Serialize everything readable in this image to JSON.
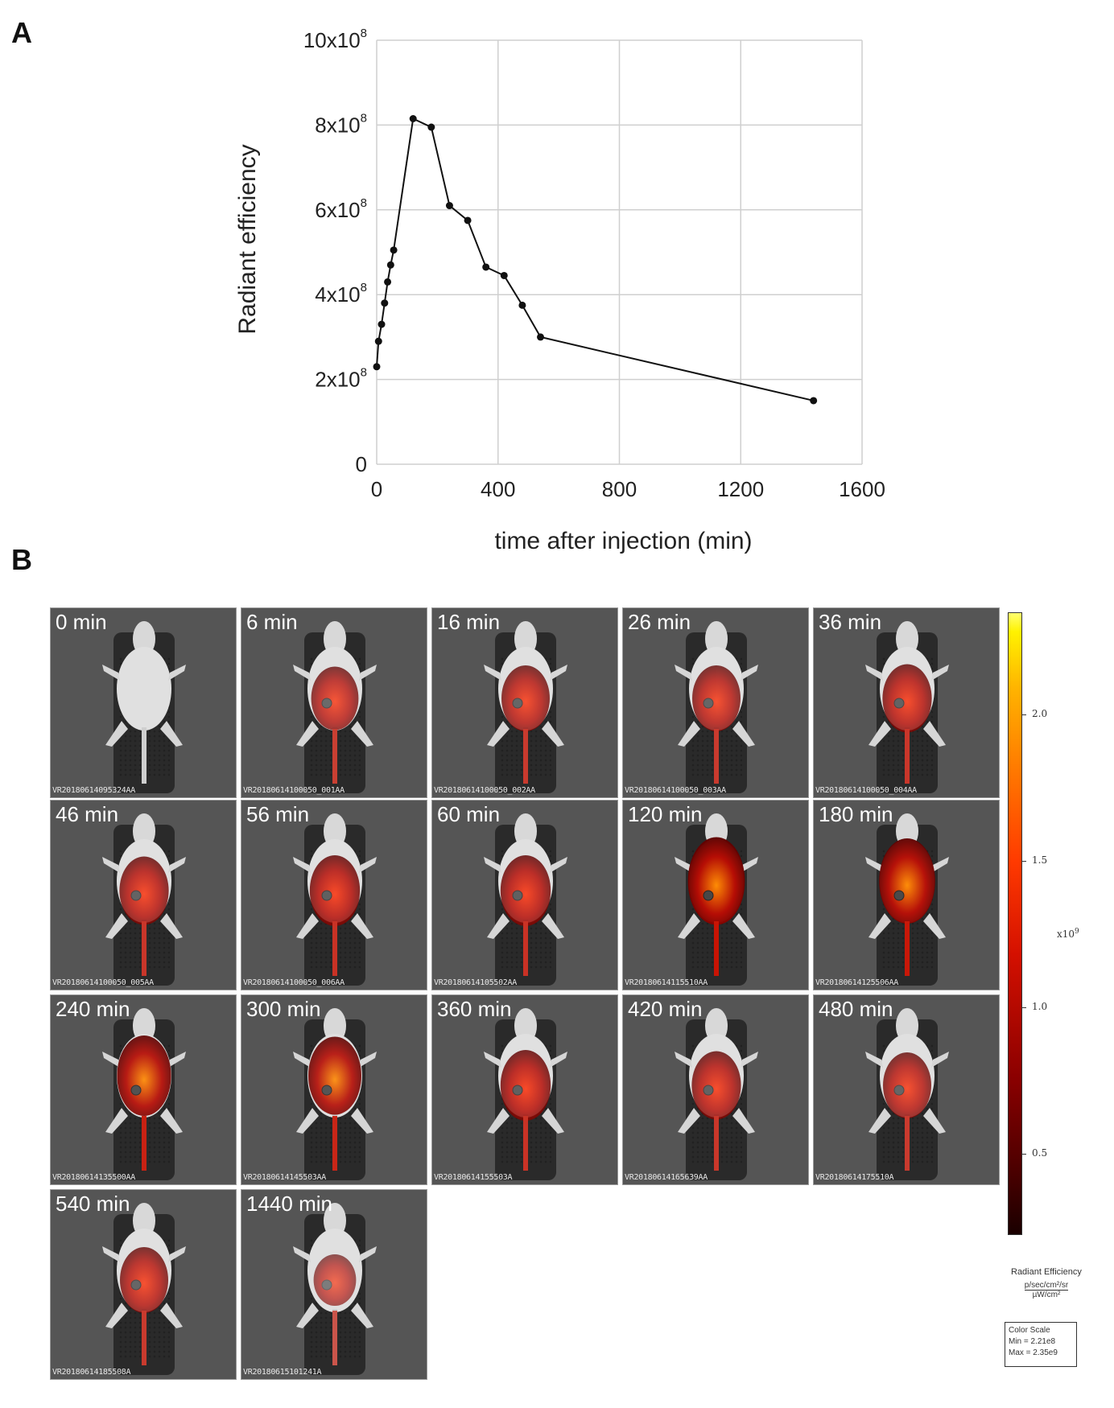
{
  "panel_labels": [
    "A",
    "B"
  ],
  "chart_data": {
    "type": "line",
    "xlabel": "time after injection (min)",
    "ylabel": "Radiant efficiency",
    "xlim": [
      0,
      1600
    ],
    "ylim": [
      0,
      1000000000
    ],
    "xticks": [
      "0",
      "400",
      "800",
      "1200",
      "1600"
    ],
    "yticks": [
      "0",
      "2x10",
      "4x10",
      "6x10",
      "8x10",
      "10x10"
    ],
    "ytick_exponent": "8",
    "grid": true,
    "series": [
      {
        "x": [
          0,
          6,
          16,
          26,
          36,
          46,
          56,
          120,
          180,
          240,
          300,
          360,
          420,
          480,
          540,
          1440
        ],
        "y": [
          230000000,
          290000000,
          330000000,
          380000000,
          430000000,
          470000000,
          505000000,
          815000000,
          795000000,
          610000000,
          575000000,
          465000000,
          445000000,
          375000000,
          300000000,
          150000000
        ]
      }
    ]
  },
  "image_grid": {
    "tiles": [
      {
        "time": "0 min",
        "id": "VR20180614095324AA"
      },
      {
        "time": "6 min",
        "id": "VR20180614100050_001AA"
      },
      {
        "time": "16 min",
        "id": "VR20180614100050_002AA"
      },
      {
        "time": "26 min",
        "id": "VR20180614100050_003AA"
      },
      {
        "time": "36 min",
        "id": "VR20180614100050_004AA"
      },
      {
        "time": "46 min",
        "id": "VR20180614100050_005AA"
      },
      {
        "time": "56 min",
        "id": "VR20180614100050_006AA"
      },
      {
        "time": "60 min",
        "id": "VR20180614105502AA"
      },
      {
        "time": "120 min",
        "id": "VR20180614115510AA"
      },
      {
        "time": "180 min",
        "id": "VR20180614125506AA"
      },
      {
        "time": "240 min",
        "id": "VR20180614135500AA"
      },
      {
        "time": "300 min",
        "id": "VR20180614145503AA"
      },
      {
        "time": "360 min",
        "id": "VR20180614155503A"
      },
      {
        "time": "420 min",
        "id": "VR20180614165639AA"
      },
      {
        "time": "480 min",
        "id": "VR20180614175510A"
      },
      {
        "time": "540 min",
        "id": "VR20180614185508A"
      },
      {
        "time": "1440 min",
        "id": "VR20180615101241A"
      }
    ],
    "heat_levels": [
      0,
      0.45,
      0.5,
      0.5,
      0.55,
      0.55,
      0.6,
      0.6,
      0.95,
      0.9,
      0.8,
      0.75,
      0.6,
      0.55,
      0.5,
      0.5,
      0.2
    ]
  },
  "colorbar": {
    "ticks": [
      "0.5",
      "1.0",
      "1.5",
      "2.0"
    ],
    "tick_values": [
      0.5,
      1.0,
      1.5,
      2.0
    ],
    "range": [
      0.221,
      2.35
    ],
    "multiplier": "x10",
    "multiplier_exp": "9",
    "title": "Radiant Efficiency",
    "unit_numerator": "p/sec/cm²/sr",
    "unit_denominator": "µW/cm²",
    "scale_title": "Color Scale",
    "scale_min": "Min = 2.21e8",
    "scale_max": "Max = 2.35e9",
    "colors": {
      "low": "#1a0000",
      "mid": "#d41000",
      "high": "#fff200"
    }
  }
}
